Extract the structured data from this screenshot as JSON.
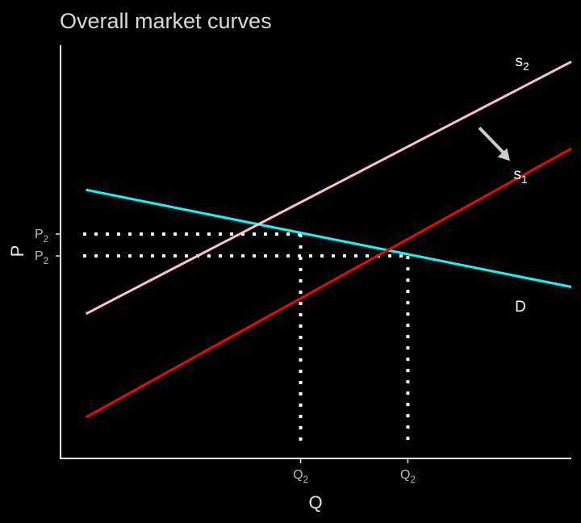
{
  "chart_data": {
    "type": "line",
    "title": "Overall market curves",
    "xlabel": "Q",
    "ylabel": "P",
    "xlim": [
      0,
      10
    ],
    "ylim": [
      0,
      10
    ],
    "show_axis_numbers": false,
    "grid": false,
    "series": [
      {
        "name": "D",
        "color": "#00ffff",
        "x": [
          0.5,
          10
        ],
        "y": [
          6.5,
          4.15
        ]
      },
      {
        "name": "s1",
        "color": "#ff0000",
        "x": [
          0.5,
          10
        ],
        "y": [
          1.0,
          7.5
        ]
      },
      {
        "name": "s2",
        "color": "#ffc0cb",
        "x": [
          0.5,
          10
        ],
        "y": [
          3.5,
          9.6
        ]
      }
    ],
    "series_labels": [
      {
        "base": "s",
        "sub": "2"
      },
      {
        "base": "s",
        "sub": "1"
      },
      {
        "base": "D",
        "sub": ""
      }
    ],
    "equilibria": [
      {
        "x": 4.7,
        "y": 5.43,
        "x_tick": {
          "base": "Q",
          "sub": "2"
        },
        "y_tick": {
          "base": "P",
          "sub": "2"
        }
      },
      {
        "x": 6.8,
        "y": 4.9,
        "x_tick": {
          "base": "Q",
          "sub": "2"
        },
        "y_tick": {
          "base": "P",
          "sub": "2"
        }
      }
    ],
    "annotation": {
      "type": "arrow",
      "from": [
        8.2,
        8.0
      ],
      "to": [
        8.8,
        7.2
      ],
      "color": "#cccccc"
    }
  }
}
